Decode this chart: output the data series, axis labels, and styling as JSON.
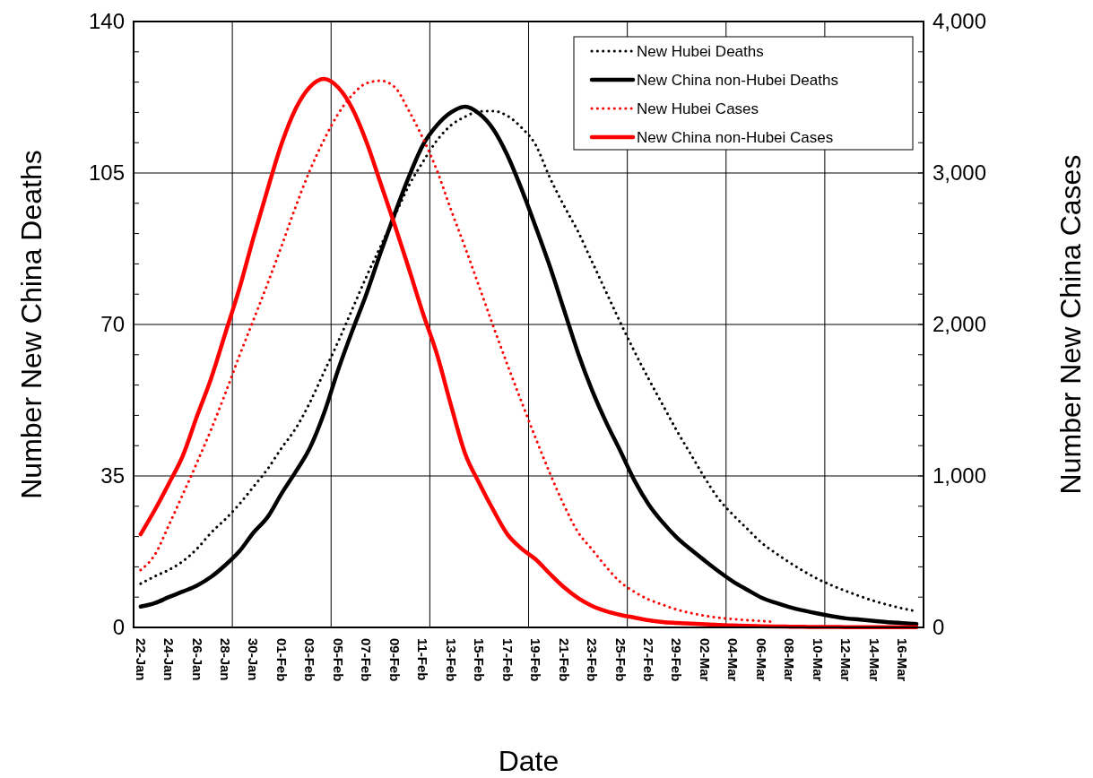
{
  "chart_data": {
    "type": "line",
    "xlabel": "Date",
    "ylabel": "Number New China Deaths",
    "y2label": "Number New China Cases",
    "categories": [
      "22-Jan",
      null,
      "24-Jan",
      null,
      "26-Jan",
      null,
      "28-Jan",
      null,
      "30-Jan",
      null,
      "01-Feb",
      null,
      "03-Feb",
      null,
      "05-Feb",
      null,
      "07-Feb",
      null,
      "09-Feb",
      null,
      "11-Feb",
      null,
      "13-Feb",
      null,
      "15-Feb",
      null,
      "17-Feb",
      null,
      "19-Feb",
      null,
      "21-Feb",
      null,
      "23-Feb",
      null,
      "25-Feb",
      null,
      "27-Feb",
      null,
      "29-Feb",
      null,
      "02-Mar",
      null,
      "04-Mar",
      null,
      "06-Mar",
      null,
      "08-Mar",
      null,
      "10-Mar",
      null,
      "12-Mar",
      null,
      "14-Mar",
      null,
      "16-Mar",
      null
    ],
    "ylim": [
      0,
      140
    ],
    "yticks": [
      0,
      {
        "value": 7,
        "label": null
      },
      {
        "value": 14,
        "label": null
      },
      {
        "value": 21,
        "label": null
      },
      {
        "value": 28,
        "label": null
      },
      35,
      {
        "value": 42,
        "label": null
      },
      {
        "value": 49,
        "label": null
      },
      {
        "value": 56,
        "label": null
      },
      {
        "value": 63,
        "label": null
      },
      70,
      {
        "value": 77,
        "label": null
      },
      {
        "value": 84,
        "label": null
      },
      {
        "value": 91,
        "label": null
      },
      {
        "value": 98,
        "label": null
      },
      105,
      {
        "value": 112,
        "label": null
      },
      {
        "value": 119,
        "label": null
      },
      {
        "value": 126,
        "label": null
      },
      {
        "value": 133,
        "label": null
      },
      140
    ],
    "y2lim": [
      0,
      4000
    ],
    "y2ticks": [
      {
        "value": 0,
        "label": "0"
      },
      {
        "value": 200,
        "label": null
      },
      {
        "value": 400,
        "label": null
      },
      {
        "value": 600,
        "label": null
      },
      {
        "value": 800,
        "label": null
      },
      {
        "value": 1000,
        "label": "1,000"
      },
      {
        "value": 1200,
        "label": null
      },
      {
        "value": 1400,
        "label": null
      },
      {
        "value": 1600,
        "label": null
      },
      {
        "value": 1800,
        "label": null
      },
      {
        "value": 2000,
        "label": "2,000"
      },
      {
        "value": 2200,
        "label": null
      },
      {
        "value": 2400,
        "label": null
      },
      {
        "value": 2600,
        "label": null
      },
      {
        "value": 2800,
        "label": null
      },
      {
        "value": 3000,
        "label": "3,000"
      },
      {
        "value": 3200,
        "label": null
      },
      {
        "value": 3400,
        "label": null
      },
      {
        "value": 3600,
        "label": null
      },
      {
        "value": 3800,
        "label": null
      },
      {
        "value": 4000,
        "label": "4,000"
      }
    ],
    "grid": true,
    "legend": "top right",
    "marker": "none",
    "series": [
      {
        "name": "New Hubei Deaths",
        "color": "#000000",
        "line_style": "dotted",
        "values": [
          10.1,
          11.8,
          13.3,
          15.3,
          18.2,
          21.9,
          25,
          28.5,
          32.5,
          36.6,
          41.5,
          46,
          52,
          59,
          66,
          73.5,
          81,
          88,
          95,
          102,
          107.5,
          112.5,
          116,
          118,
          119.2,
          119.3,
          118.2,
          115.5,
          111.5,
          104,
          97.5,
          91.5,
          84.5,
          77.5,
          70.5,
          63.8,
          57.5,
          51.5,
          45.5,
          40,
          34.5,
          29.6,
          26,
          22.8,
          19.6,
          17.2,
          15,
          13,
          11.2,
          9.7,
          8.4,
          7.2,
          6.1,
          5.2,
          4.4,
          3.7
        ]
      },
      {
        "name": "New China non-Hubei Deaths",
        "color": "#000000",
        "line_style": "solid",
        "values": [
          4.8,
          5.6,
          7,
          8.3,
          9.7,
          11.7,
          14.4,
          17.6,
          21.9,
          25.5,
          31,
          36,
          41.5,
          49.5,
          59.5,
          68.5,
          77,
          86.5,
          95.5,
          104,
          111.4,
          116,
          119,
          120.3,
          118.7,
          115.1,
          109.1,
          101.3,
          92.6,
          83.5,
          73.5,
          63.5,
          54.8,
          47.4,
          40.8,
          34,
          28.5,
          24.3,
          20.8,
          18,
          15.4,
          12.9,
          10.6,
          8.7,
          6.9,
          5.7,
          4.7,
          3.9,
          3.2,
          2.6,
          2.1,
          1.8,
          1.5,
          1.2,
          1,
          0.8
        ]
      },
      {
        "name": "New Hubei Cases",
        "color": "#ff0000",
        "line_style": "dotted",
        "axis": "y2",
        "values": [
          379,
          479,
          675,
          880,
          1089,
          1308,
          1544,
          1793,
          2030,
          2270,
          2520,
          2780,
          3018,
          3219,
          3390,
          3515,
          3592,
          3609,
          3568,
          3414,
          3231,
          3018,
          2757,
          2509,
          2249,
          1988,
          1734,
          1490,
          1250,
          1020,
          810,
          630,
          515,
          400,
          300,
          235,
          185,
          150,
          118,
          95,
          77,
          64,
          55,
          48,
          42,
          36,
          null,
          null,
          null,
          null,
          null,
          null,
          null,
          null,
          null,
          null
        ]
      },
      {
        "name": "New China non-Hubei Cases",
        "color": "#ff0000",
        "line_style": "solid",
        "axis": "y2",
        "values": [
          615,
          775,
          950,
          1136,
          1396,
          1645,
          1941,
          2237,
          2574,
          2893,
          3195,
          3426,
          3568,
          3621,
          3565,
          3426,
          3207,
          2935,
          2660,
          2373,
          2077,
          1805,
          1467,
          1148,
          953,
          775,
          615,
          520,
          450,
          355,
          266,
          195,
          142,
          107,
          83,
          65,
          47,
          36,
          30,
          25,
          20,
          16,
          13,
          10,
          8,
          6,
          5,
          4,
          3,
          3,
          2,
          2,
          1,
          1,
          1,
          1
        ]
      }
    ]
  }
}
